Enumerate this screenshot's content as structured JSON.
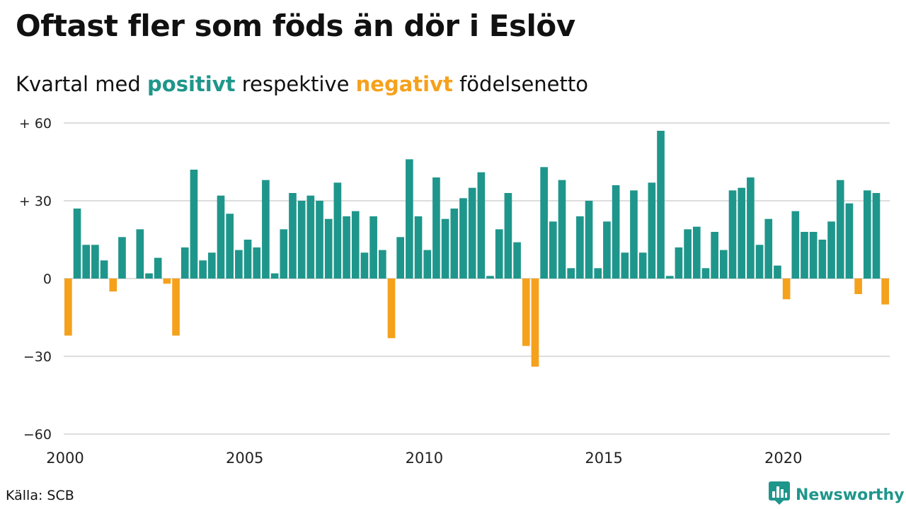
{
  "title": "Oftast fler som föds än dör i Eslöv",
  "subtitle": {
    "prefix": "Kvartal med ",
    "positive_word": "positivt",
    "middle": " respektive ",
    "negative_word": "negativt",
    "suffix": " födelsenetto"
  },
  "colors": {
    "positive": "#1f968b",
    "negative": "#f5a11c",
    "grid": "#dddddd",
    "text": "#111111"
  },
  "source": "Källa: SCB",
  "brand": {
    "name": "Newsworthy",
    "icon": "bar-chart-speech-icon"
  },
  "chart_data": {
    "type": "bar",
    "x_start_year": 2000,
    "periods_per_year": 4,
    "values": [
      -22,
      27,
      13,
      13,
      7,
      -5,
      16,
      0,
      19,
      2,
      8,
      -2,
      -22,
      12,
      42,
      7,
      10,
      32,
      25,
      11,
      15,
      12,
      38,
      2,
      19,
      33,
      30,
      32,
      30,
      23,
      37,
      24,
      26,
      10,
      24,
      11,
      -23,
      16,
      46,
      24,
      11,
      39,
      23,
      27,
      31,
      35,
      41,
      1,
      19,
      33,
      14,
      -26,
      -34,
      43,
      22,
      38,
      4,
      24,
      30,
      4,
      22,
      36,
      10,
      34,
      10,
      37,
      57,
      1,
      12,
      19,
      20,
      4,
      18,
      11,
      34,
      35,
      39,
      13,
      23,
      5,
      -8,
      26,
      18,
      18,
      15,
      22,
      38,
      29,
      -6,
      34,
      33,
      -10
    ],
    "ylim": [
      -60,
      60
    ],
    "yticks": [
      60,
      30,
      0,
      -30,
      -60
    ],
    "ytick_labels": [
      "+ 60",
      "+ 30",
      "0",
      "−30",
      "−60"
    ],
    "xticks": [
      "2000",
      "2005",
      "2010",
      "2015",
      "2020"
    ],
    "grid": true
  }
}
